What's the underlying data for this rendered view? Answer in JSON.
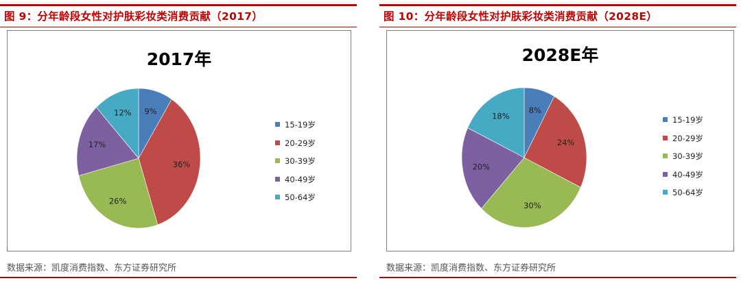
{
  "colors": {
    "accent": "#c00000",
    "frame": "#7f7f7f"
  },
  "legend_labels": [
    "15-19岁",
    "20-29岁",
    "30-39岁",
    "40-49岁",
    "50-64岁"
  ],
  "slice_colors": [
    "#4a7ebb",
    "#be4b48",
    "#98b954",
    "#7d60a0",
    "#46aac4"
  ],
  "figures": [
    {
      "caption": "图 9：分年龄段女性对护肤彩妆类消费贡献（2017）",
      "source": "数据来源：凯度消费指数、东方证券研究所",
      "chart_data": {
        "type": "pie",
        "title": "2017年",
        "categories": [
          "15-19岁",
          "20-29岁",
          "30-39岁",
          "40-49岁",
          "50-64岁"
        ],
        "values": [
          9,
          36,
          26,
          17,
          12
        ],
        "data_labels": [
          "9%",
          "36%",
          "26%",
          "17%",
          "12%"
        ],
        "legend_position": "right"
      }
    },
    {
      "caption": "图 10：分年龄段女性对护肤彩妆类消费贡献（2028E）",
      "source": "数据来源：凯度消费指数、东方证券研究所",
      "chart_data": {
        "type": "pie",
        "title": "2028E年",
        "categories": [
          "15-19岁",
          "20-29岁",
          "30-39岁",
          "40-49岁",
          "50-64岁"
        ],
        "values": [
          8,
          24,
          30,
          20,
          18
        ],
        "data_labels": [
          "8%",
          "24%",
          "30%",
          "20%",
          "18%"
        ],
        "legend_position": "right"
      }
    }
  ]
}
